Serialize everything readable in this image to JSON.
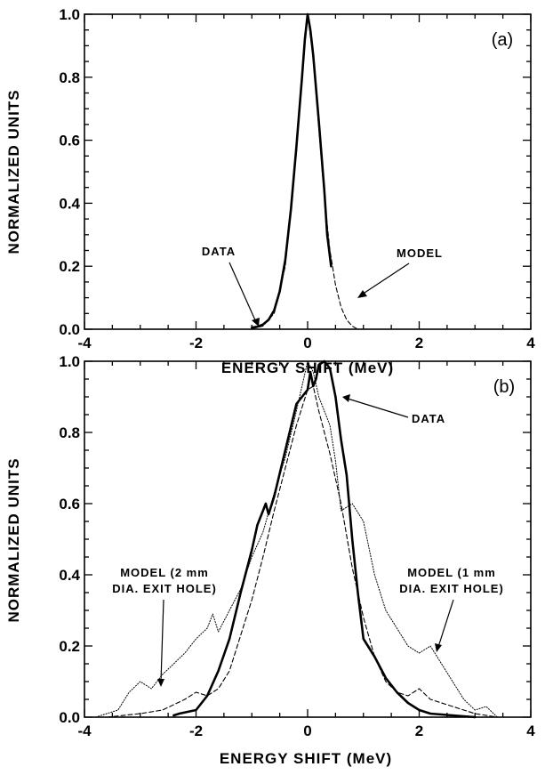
{
  "chart_data": [
    {
      "type": "line",
      "panel_label": "(a)",
      "xlabel": "ENERGY SHIFT (MeV)",
      "ylabel": "NORMALIZED UNITS",
      "xlim": [
        -4,
        4
      ],
      "ylim": [
        0,
        1
      ],
      "xticks": [
        "-4",
        "-2",
        "0",
        "2",
        "4"
      ],
      "yticks": [
        "0.0",
        "0.2",
        "0.4",
        "0.6",
        "0.8",
        "1.0"
      ],
      "grid": false,
      "series": [
        {
          "name": "DATA",
          "style": "solid-thick",
          "points": [
            [
              -1.0,
              0.005
            ],
            [
              -0.9,
              0.008
            ],
            [
              -0.8,
              0.015
            ],
            [
              -0.7,
              0.03
            ],
            [
              -0.6,
              0.06
            ],
            [
              -0.5,
              0.12
            ],
            [
              -0.4,
              0.22
            ],
            [
              -0.3,
              0.38
            ],
            [
              -0.2,
              0.58
            ],
            [
              -0.1,
              0.8
            ],
            [
              -0.05,
              0.92
            ],
            [
              0.0,
              1.0
            ],
            [
              0.05,
              0.95
            ],
            [
              0.1,
              0.87
            ],
            [
              0.2,
              0.66
            ],
            [
              0.3,
              0.44
            ],
            [
              0.35,
              0.3
            ],
            [
              0.38,
              0.26
            ],
            [
              0.42,
              0.2
            ]
          ]
        },
        {
          "name": "MODEL",
          "style": "dashed-thin",
          "points": [
            [
              -1.0,
              0.002
            ],
            [
              -0.8,
              0.01
            ],
            [
              -0.6,
              0.05
            ],
            [
              -0.4,
              0.2
            ],
            [
              -0.2,
              0.56
            ],
            [
              -0.1,
              0.8
            ],
            [
              0.0,
              1.0
            ],
            [
              0.1,
              0.86
            ],
            [
              0.2,
              0.64
            ],
            [
              0.3,
              0.42
            ],
            [
              0.4,
              0.25
            ],
            [
              0.5,
              0.14
            ],
            [
              0.6,
              0.07
            ],
            [
              0.7,
              0.03
            ],
            [
              0.8,
              0.01
            ],
            [
              0.9,
              0.0
            ]
          ]
        }
      ],
      "annotations": [
        {
          "text": "DATA",
          "target": [
            -0.95,
            0.01
          ]
        },
        {
          "text": "MODEL",
          "target": [
            0.35,
            0.09
          ]
        }
      ]
    },
    {
      "type": "line",
      "panel_label": "(b)",
      "xlabel": "ENERGY SHIFT (MeV)",
      "ylabel": "NORMALIZED UNITS",
      "xlim": [
        -4,
        4
      ],
      "ylim": [
        0,
        1
      ],
      "xticks": [
        "-4",
        "-2",
        "0",
        "2",
        "4"
      ],
      "yticks": [
        "0.0",
        "0.2",
        "0.4",
        "0.6",
        "0.8",
        "1.0"
      ],
      "grid": false,
      "series": [
        {
          "name": "DATA",
          "style": "solid-thick",
          "points": [
            [
              -2.4,
              0.005
            ],
            [
              -2.3,
              0.01
            ],
            [
              -2.0,
              0.02
            ],
            [
              -1.8,
              0.06
            ],
            [
              -1.6,
              0.13
            ],
            [
              -1.4,
              0.22
            ],
            [
              -1.2,
              0.35
            ],
            [
              -1.0,
              0.47
            ],
            [
              -0.9,
              0.54
            ],
            [
              -0.8,
              0.58
            ],
            [
              -0.75,
              0.6
            ],
            [
              -0.7,
              0.57
            ],
            [
              -0.6,
              0.62
            ],
            [
              -0.4,
              0.75
            ],
            [
              -0.2,
              0.88
            ],
            [
              0.0,
              0.92
            ],
            [
              0.05,
              0.97
            ],
            [
              0.1,
              0.93
            ],
            [
              0.15,
              0.95
            ],
            [
              0.2,
              0.99
            ],
            [
              0.3,
              1.0
            ],
            [
              0.4,
              0.98
            ],
            [
              0.5,
              0.9
            ],
            [
              0.6,
              0.78
            ],
            [
              0.7,
              0.68
            ],
            [
              0.8,
              0.5
            ],
            [
              0.9,
              0.35
            ],
            [
              1.0,
              0.22
            ],
            [
              1.2,
              0.17
            ],
            [
              1.4,
              0.11
            ],
            [
              1.6,
              0.07
            ],
            [
              1.8,
              0.04
            ],
            [
              2.0,
              0.02
            ],
            [
              2.2,
              0.01
            ],
            [
              2.6,
              0.005
            ],
            [
              3.0,
              0.0
            ]
          ]
        },
        {
          "name": "MODEL (1 mm DIA. EXIT HOLE)",
          "style": "dashed-thin",
          "points": [
            [
              -3.6,
              0.0
            ],
            [
              -3.0,
              0.01
            ],
            [
              -2.6,
              0.02
            ],
            [
              -2.2,
              0.05
            ],
            [
              -2.0,
              0.07
            ],
            [
              -1.8,
              0.06
            ],
            [
              -1.6,
              0.08
            ],
            [
              -1.4,
              0.13
            ],
            [
              -1.2,
              0.23
            ],
            [
              -1.0,
              0.33
            ],
            [
              -0.8,
              0.45
            ],
            [
              -0.6,
              0.58
            ],
            [
              -0.4,
              0.7
            ],
            [
              -0.2,
              0.82
            ],
            [
              0.0,
              0.92
            ],
            [
              0.1,
              0.93
            ],
            [
              0.2,
              0.86
            ],
            [
              0.4,
              0.74
            ],
            [
              0.6,
              0.6
            ],
            [
              0.8,
              0.42
            ],
            [
              1.0,
              0.28
            ],
            [
              1.2,
              0.17
            ],
            [
              1.4,
              0.1
            ],
            [
              1.6,
              0.07
            ],
            [
              1.8,
              0.06
            ],
            [
              2.0,
              0.08
            ],
            [
              2.2,
              0.05
            ],
            [
              2.6,
              0.03
            ],
            [
              3.0,
              0.01
            ],
            [
              3.4,
              0.0
            ]
          ]
        },
        {
          "name": "MODEL (2 mm DIA. EXIT HOLE)",
          "style": "dotted-thin",
          "points": [
            [
              -3.8,
              0.0
            ],
            [
              -3.4,
              0.02
            ],
            [
              -3.2,
              0.07
            ],
            [
              -3.0,
              0.1
            ],
            [
              -2.8,
              0.08
            ],
            [
              -2.6,
              0.12
            ],
            [
              -2.4,
              0.15
            ],
            [
              -2.2,
              0.18
            ],
            [
              -2.0,
              0.22
            ],
            [
              -1.8,
              0.25
            ],
            [
              -1.7,
              0.29
            ],
            [
              -1.6,
              0.24
            ],
            [
              -1.4,
              0.3
            ],
            [
              -1.2,
              0.36
            ],
            [
              -1.0,
              0.45
            ],
            [
              -0.8,
              0.52
            ],
            [
              -0.6,
              0.63
            ],
            [
              -0.4,
              0.73
            ],
            [
              -0.2,
              0.86
            ],
            [
              0.0,
              1.0
            ],
            [
              0.1,
              0.97
            ],
            [
              0.2,
              0.9
            ],
            [
              0.4,
              0.82
            ],
            [
              0.5,
              0.72
            ],
            [
              0.6,
              0.58
            ],
            [
              0.8,
              0.6
            ],
            [
              1.0,
              0.55
            ],
            [
              1.2,
              0.4
            ],
            [
              1.4,
              0.3
            ],
            [
              1.6,
              0.25
            ],
            [
              1.8,
              0.2
            ],
            [
              2.0,
              0.18
            ],
            [
              2.2,
              0.2
            ],
            [
              2.4,
              0.15
            ],
            [
              2.6,
              0.1
            ],
            [
              2.8,
              0.05
            ],
            [
              3.0,
              0.02
            ],
            [
              3.2,
              0.03
            ],
            [
              3.4,
              0.0
            ]
          ]
        }
      ],
      "annotations": [
        {
          "text": "DATA",
          "target": [
            0.3,
            0.99
          ]
        },
        {
          "lines": [
            "MODEL (2 mm",
            "DIA. EXIT HOLE)"
          ],
          "target": [
            -2.3,
            0.06
          ]
        },
        {
          "lines": [
            "MODEL (1 mm",
            "DIA. EXIT HOLE)"
          ],
          "target": [
            2.0,
            0.18
          ]
        }
      ]
    }
  ]
}
